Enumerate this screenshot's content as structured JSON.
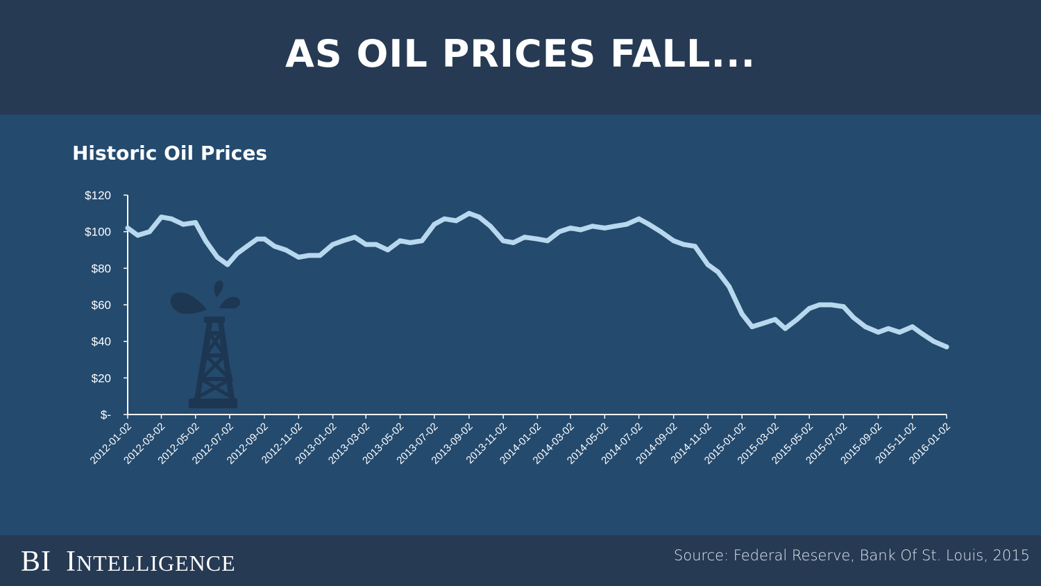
{
  "header": {
    "title": "AS OIL PRICES FALL..."
  },
  "footer": {
    "brand": {
      "initials": "BI",
      "word_first": "I",
      "word_rest": "NTELLIGENCE"
    },
    "source": "Source: Federal Reserve, Bank Of St. Louis, 2015"
  },
  "icons": {
    "decoration": "oil-derrick-icon"
  },
  "colors": {
    "background": "#244a6e",
    "header": "#263a53",
    "line": "#b8d8ee",
    "icon": "#1d3651"
  },
  "chart_data": {
    "type": "line",
    "title": "Historic Oil Prices",
    "xlabel": "",
    "ylabel": "",
    "ylim": [
      0,
      120
    ],
    "y_ticks": [
      0,
      20,
      40,
      60,
      80,
      100,
      120
    ],
    "y_tick_labels": [
      "$-",
      "$20",
      "$40",
      "$60",
      "$80",
      "$100",
      "$120"
    ],
    "x_tick_labels": [
      "2012-01-02",
      "2012-03-02",
      "2012-05-02",
      "2012-07-02",
      "2012-09-02",
      "2012-11-02",
      "2013-01-02",
      "2013-03-02",
      "2013-05-02",
      "2013-07-02",
      "2013-09-02",
      "2013-11-02",
      "2014-01-02",
      "2014-03-02",
      "2014-05-02",
      "2014-07-02",
      "2014-09-02",
      "2014-11-02",
      "2015-01-02",
      "2015-03-02",
      "2015-05-02",
      "2015-07-02",
      "2015-09-02",
      "2015-11-02",
      "2016-01-02"
    ],
    "x": [
      "2012-01-02",
      "2012-01-20",
      "2012-02-10",
      "2012-03-02",
      "2012-03-20",
      "2012-04-10",
      "2012-05-02",
      "2012-05-20",
      "2012-06-10",
      "2012-06-28",
      "2012-07-15",
      "2012-08-02",
      "2012-08-20",
      "2012-09-02",
      "2012-09-20",
      "2012-10-10",
      "2012-11-02",
      "2012-11-20",
      "2012-12-10",
      "2013-01-02",
      "2013-01-20",
      "2013-02-10",
      "2013-03-02",
      "2013-03-20",
      "2013-04-10",
      "2013-05-02",
      "2013-05-20",
      "2013-06-10",
      "2013-07-02",
      "2013-07-20",
      "2013-08-10",
      "2013-09-02",
      "2013-09-20",
      "2013-10-10",
      "2013-11-02",
      "2013-11-20",
      "2013-12-10",
      "2014-01-02",
      "2014-01-20",
      "2014-02-10",
      "2014-03-02",
      "2014-03-20",
      "2014-04-10",
      "2014-05-02",
      "2014-05-20",
      "2014-06-10",
      "2014-07-02",
      "2014-07-20",
      "2014-08-10",
      "2014-09-02",
      "2014-09-20",
      "2014-10-10",
      "2014-11-02",
      "2014-11-20",
      "2014-12-10",
      "2015-01-02",
      "2015-01-20",
      "2015-02-10",
      "2015-03-02",
      "2015-03-20",
      "2015-04-10",
      "2015-05-02",
      "2015-05-20",
      "2015-06-10",
      "2015-07-02",
      "2015-07-20",
      "2015-08-10",
      "2015-09-02",
      "2015-09-20",
      "2015-10-10",
      "2015-11-02",
      "2015-11-20",
      "2015-12-10",
      "2016-01-02"
    ],
    "series": [
      {
        "values": [
          102,
          98,
          100,
          108,
          107,
          104,
          105,
          95,
          86,
          82,
          88,
          92,
          96,
          96,
          92,
          90,
          86,
          87,
          87,
          93,
          95,
          97,
          93,
          93,
          90,
          95,
          94,
          95,
          104,
          107,
          106,
          110,
          108,
          103,
          95,
          94,
          97,
          96,
          95,
          100,
          102,
          101,
          103,
          102,
          103,
          104,
          107,
          104,
          100,
          95,
          93,
          92,
          82,
          78,
          70,
          55,
          48,
          50,
          52,
          47,
          52,
          58,
          60,
          60,
          59,
          53,
          48,
          45,
          47,
          45,
          48,
          44,
          40,
          37
        ]
      }
    ]
  }
}
